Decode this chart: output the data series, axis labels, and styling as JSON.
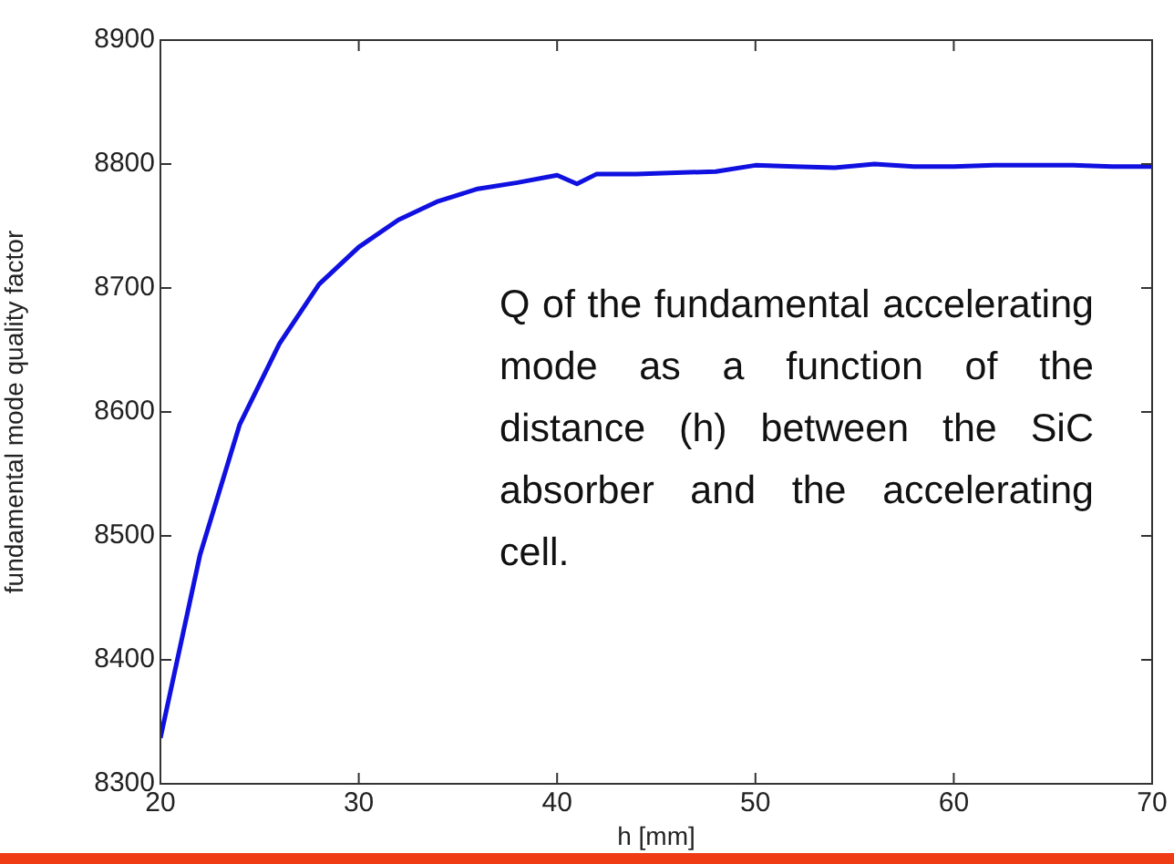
{
  "chart_data": {
    "type": "line",
    "xlabel": "h [mm]",
    "ylabel": "fundamental mode quality factor",
    "x": [
      20,
      22,
      24,
      26,
      28,
      30,
      32,
      34,
      36,
      38,
      40,
      41,
      42,
      44,
      46,
      48,
      50,
      52,
      54,
      56,
      58,
      60,
      62,
      64,
      66,
      68,
      70
    ],
    "series": [
      {
        "color": "#1010e0",
        "values": [
          8337,
          8485,
          8590,
          8655,
          8703,
          8733,
          8755,
          8770,
          8780,
          8785,
          8791,
          8784,
          8792,
          8792,
          8793,
          8794,
          8799,
          8798,
          8797,
          8800,
          8798,
          8798,
          8799,
          8799,
          8799,
          8798,
          8798
        ]
      }
    ],
    "xlim": [
      20,
      70
    ],
    "xticks": [
      20,
      30,
      40,
      50,
      60,
      70
    ],
    "ylim": [
      8300,
      8900
    ],
    "yticks": [
      8300,
      8400,
      8500,
      8600,
      8700,
      8800,
      8900
    ],
    "grid": false,
    "legend": false,
    "marker": "none",
    "line_style": "solid",
    "annotations": [
      "Q of the fundamental accelerating mode as a function of the distance (h) between the SiC absorber and the accelerating cell."
    ]
  }
}
